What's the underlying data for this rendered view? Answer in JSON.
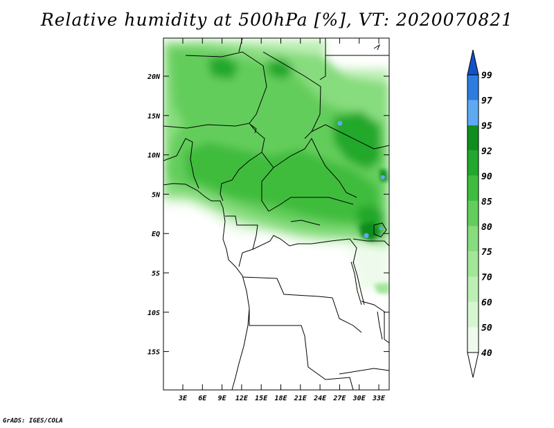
{
  "title": "Relative humidity at 500hPa [%], VT: 2020070821",
  "credit": "GrADS: IGES/COLA",
  "map": {
    "lon_labels": [
      "3E",
      "6E",
      "9E",
      "12E",
      "15E",
      "18E",
      "21E",
      "24E",
      "27E",
      "30E",
      "33E"
    ],
    "lat_labels": [
      "20N",
      "15N",
      "10N",
      "5N",
      "EQ",
      "5S",
      "10S",
      "15S"
    ]
  },
  "colorbar": {
    "labels": [
      "40",
      "50",
      "60",
      "70",
      "75",
      "80",
      "85",
      "90",
      "92",
      "95",
      "97",
      "99"
    ],
    "colors": {
      "lt40": "#ffffff",
      "40_50": "#eefbec",
      "50_60": "#d6f6d1",
      "60_70": "#bdefb5",
      "70_75": "#a3e699",
      "75_80": "#87dc7e",
      "80_85": "#63cd5c",
      "85_90": "#3fbc3e",
      "90_92": "#22a82c",
      "92_95": "#118d1f",
      "95_97": "#5ea9f2",
      "97_99": "#2d7de0",
      "gt99": "#1351c8"
    }
  }
}
